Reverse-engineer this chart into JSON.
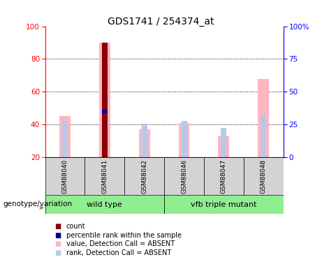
{
  "title": "GDS1741 / 254374_at",
  "samples": [
    "GSM88040",
    "GSM88041",
    "GSM88042",
    "GSM88046",
    "GSM88047",
    "GSM88048"
  ],
  "value_absent": [
    45,
    90,
    37,
    41,
    33,
    68
  ],
  "rank_absent": [
    42,
    48,
    40.5,
    42,
    38,
    46
  ],
  "count_red": [
    null,
    90,
    null,
    null,
    null,
    null
  ],
  "percentile_blue": [
    null,
    48,
    null,
    null,
    null,
    null
  ],
  "ylim_left": [
    20,
    100
  ],
  "yticks_left": [
    20,
    40,
    60,
    80,
    100
  ],
  "yticks_right": [
    0,
    25,
    50,
    75,
    100
  ],
  "ytick_right_labels": [
    "0",
    "25",
    "50",
    "75",
    "100%"
  ],
  "color_value_absent": "#FFB6C1",
  "color_rank_absent": "#B8C8E8",
  "color_count": "#8B0000",
  "color_percentile": "#00008B",
  "label_area_color": "#D3D3D3",
  "group_color": "#90EE90",
  "genotype_label": "genotype/variation",
  "wild_type_label": "wild type",
  "mutant_label": "vfb triple mutant",
  "legend_items": [
    {
      "color": "#8B0000",
      "label": "count"
    },
    {
      "color": "#00008B",
      "label": "percentile rank within the sample"
    },
    {
      "color": "#FFB6C1",
      "label": "value, Detection Call = ABSENT"
    },
    {
      "color": "#B8C8E8",
      "label": "rank, Detection Call = ABSENT"
    }
  ]
}
